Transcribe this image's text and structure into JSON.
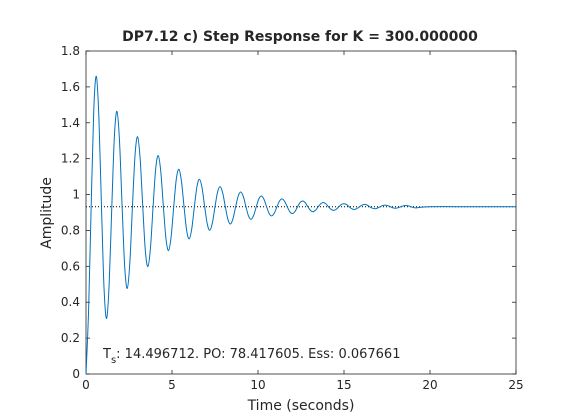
{
  "chart_data": {
    "type": "line",
    "title": "DP7.12 c) Step Response for K = 300.000000",
    "xlabel": "Time (seconds)",
    "ylabel": "Amplitude",
    "annotation": {
      "symbol": "T",
      "subscript": "s",
      "text": ": 14.496712. PO: 78.417605. Ess: 0.067661"
    },
    "color": "#0072bd",
    "reference_line": 0.932,
    "xlim": [
      0,
      25
    ],
    "ylim": [
      0,
      1.8
    ],
    "xticks": [
      0,
      5,
      10,
      15,
      20,
      25
    ],
    "yticks": [
      0,
      0.2,
      0.4,
      0.6,
      0.8,
      1,
      1.2,
      1.4,
      1.6,
      1.8
    ],
    "x": [
      0,
      0.15,
      0.3,
      0.45,
      0.6,
      0.75,
      0.9,
      1.05,
      1.2,
      1.35,
      1.5,
      1.65,
      1.8,
      1.95,
      2.1,
      2.25,
      2.4,
      2.55,
      2.7,
      2.85,
      3,
      3.15,
      3.3,
      3.45,
      3.6,
      3.75,
      3.9,
      4.05,
      4.2,
      4.35,
      4.5,
      4.65,
      4.8,
      4.95,
      5.1,
      5.25,
      5.4,
      5.55,
      5.7,
      5.85,
      6,
      6.15,
      6.3,
      6.45,
      6.6,
      6.75,
      6.9,
      7.05,
      7.2,
      7.35,
      7.5,
      7.65,
      7.8,
      7.95,
      8.1,
      8.25,
      8.4,
      8.55,
      8.7,
      8.85,
      9,
      9.15,
      9.3,
      9.45,
      9.6,
      9.75,
      9.9,
      10.05,
      10.2,
      10.35,
      10.5,
      10.65,
      10.8,
      10.95,
      11.1,
      11.25,
      11.4,
      11.55,
      11.7,
      11.85,
      12,
      12.15,
      12.3,
      12.45,
      12.6,
      12.75,
      12.9,
      13.05,
      13.2,
      13.35,
      13.5,
      13.65,
      13.8,
      13.95,
      14.1,
      14.25,
      14.4,
      14.55,
      14.7,
      14.85,
      15,
      15.15,
      15.3,
      15.45,
      15.6,
      15.75,
      15.9,
      16.05,
      16.2,
      16.35,
      16.5,
      16.65,
      16.8,
      16.95,
      17.1,
      17.25,
      17.4,
      17.55,
      17.7,
      17.85,
      18,
      18.15,
      18.3,
      18.45,
      18.6,
      18.75,
      18.9,
      19.05,
      19.2,
      20,
      22.5,
      25
    ],
    "values": [
      0,
      0.354,
      0.932,
      1.467,
      1.659,
      1.427,
      0.932,
      0.475,
      0.31,
      0.509,
      0.932,
      1.323,
      1.464,
      1.294,
      0.932,
      0.597,
      0.477,
      0.622,
      0.932,
      1.218,
      1.322,
      1.197,
      0.932,
      0.687,
      0.599,
      0.705,
      0.932,
      1.142,
      1.217,
      1.126,
      0.932,
      0.753,
      0.688,
      0.766,
      0.932,
      1.086,
      1.141,
      1.074,
      0.932,
      0.801,
      0.753,
      0.81,
      0.932,
      1.044,
      1.085,
      1.036,
      0.932,
      0.836,
      0.801,
      0.843,
      0.932,
      1.014,
      1.044,
      1.008,
      0.932,
      0.862,
      0.836,
      0.867,
      0.932,
      0.992,
      1.014,
      0.988,
      0.932,
      0.88,
      0.862,
      0.884,
      0.932,
      0.976,
      0.992,
      0.973,
      0.932,
      0.894,
      0.881,
      0.897,
      0.932,
      0.964,
      0.976,
      0.962,
      0.932,
      0.904,
      0.894,
      0.906,
      0.932,
      0.956,
      0.964,
      0.954,
      0.932,
      0.912,
      0.904,
      0.913,
      0.932,
      0.949,
      0.956,
      0.948,
      0.932,
      0.917,
      0.912,
      0.918,
      0.932,
      0.945,
      0.949,
      0.944,
      0.932,
      0.921,
      0.917,
      0.922,
      0.932,
      0.941,
      0.945,
      0.941,
      0.932,
      0.924,
      0.921,
      0.925,
      0.932,
      0.939,
      0.941,
      0.938,
      0.932,
      0.926,
      0.924,
      0.927,
      0.932,
      0.937,
      0.939,
      0.937,
      0.932,
      0.928,
      0.926,
      0.932,
      0.932,
      0.932
    ]
  }
}
